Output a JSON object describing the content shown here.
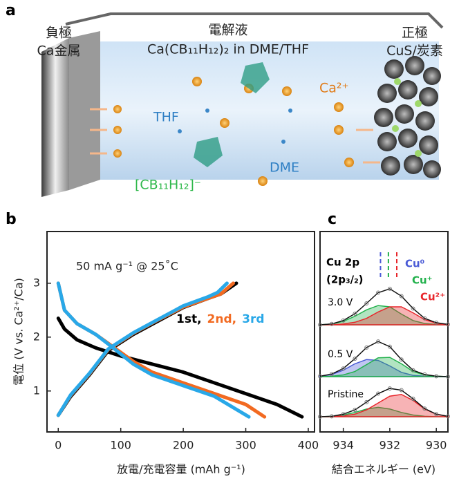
{
  "panels": [
    "a",
    "b",
    "c"
  ],
  "illustration": {
    "anode": {
      "title": "負極",
      "material": "Ca金属"
    },
    "electrolyte": {
      "title": "電解液",
      "composition": "Ca(CB₁₁H₁₂)₂ in DME/THF"
    },
    "cathode": {
      "title": "正極",
      "material": "CuS/炭素"
    },
    "labels": {
      "ion": "Ca²⁺",
      "thf": "THF",
      "dme": "DME",
      "anion": "[CB₁₁H₁₂]⁻"
    }
  },
  "chart_data": [
    {
      "type": "line",
      "y_label": "電位 (V vs. Ca²⁺/Ca)",
      "x_label": "放電/充電容量 (mAh g⁻¹)",
      "annotation": "50 mA g⁻¹  @ 25˚C",
      "xlim": [
        -18,
        410
      ],
      "xticks": [
        0,
        100,
        200,
        300,
        400
      ],
      "ylim": [
        0.24,
        3.96
      ],
      "yticks": [
        1,
        2,
        3
      ],
      "series": [
        {
          "name": "1st,",
          "color": "#000000",
          "discharge": {
            "x": [
              0,
              10,
              30,
              60,
              100,
              150,
              200,
              250,
              300,
              350,
              390
            ],
            "values": [
              2.35,
              2.15,
              1.95,
              1.8,
              1.65,
              1.5,
              1.35,
              1.15,
              0.95,
              0.75,
              0.52
            ]
          },
          "charge": {
            "x": [
              0,
              20,
              50,
              80,
              120,
              160,
              200,
              240,
              260,
              285
            ],
            "values": [
              0.55,
              0.9,
              1.3,
              1.75,
              2.05,
              2.3,
              2.55,
              2.72,
              2.8,
              3.0
            ]
          }
        },
        {
          "name": "2nd,",
          "color": "#f26a21",
          "discharge": {
            "x": [
              0,
              10,
              30,
              60,
              90,
              120,
              150,
              200,
              250,
              300,
              330
            ],
            "values": [
              3.0,
              2.5,
              2.25,
              2.05,
              1.8,
              1.55,
              1.35,
              1.15,
              0.95,
              0.75,
              0.52
            ]
          },
          "charge": {
            "x": [
              0,
              20,
              50,
              80,
              120,
              160,
              200,
              240,
              260,
              280
            ],
            "values": [
              0.55,
              0.92,
              1.32,
              1.77,
              2.07,
              2.32,
              2.56,
              2.72,
              2.8,
              3.0
            ]
          }
        },
        {
          "name": "3rd",
          "color": "#29a8e8",
          "discharge": {
            "x": [
              0,
              10,
              30,
              60,
              90,
              120,
              150,
              200,
              250,
              305
            ],
            "values": [
              3.0,
              2.5,
              2.25,
              2.05,
              1.78,
              1.5,
              1.3,
              1.1,
              0.9,
              0.52
            ]
          },
          "charge": {
            "x": [
              0,
              20,
              50,
              80,
              120,
              160,
              200,
              240,
              255,
              270
            ],
            "values": [
              0.55,
              0.93,
              1.33,
              1.78,
              2.08,
              2.33,
              2.58,
              2.75,
              2.83,
              3.0
            ]
          }
        }
      ]
    },
    {
      "type": "spectra",
      "title": "Cu 2p",
      "subtitle": "(2p₃/₂)",
      "x_label": "結合エネルギー (eV)",
      "xlim": [
        935,
        929.5
      ],
      "xticks": [
        934,
        932,
        930
      ],
      "references": [
        {
          "label": "Cu⁰",
          "value": 932.4,
          "color": "#4a5bd6"
        },
        {
          "label": "Cu⁺",
          "value": 932.06,
          "color": "#22b14c"
        },
        {
          "label": "Cu²⁺",
          "value": 931.7,
          "color": "#e8262b"
        }
      ],
      "x": [
        935,
        934.5,
        934,
        933.5,
        933,
        932.5,
        932,
        931.5,
        931,
        930.5,
        930,
        929.5
      ],
      "spectra": [
        {
          "label": "3.0 V",
          "envelope": [
            0,
            0.02,
            0.1,
            0.26,
            0.5,
            0.75,
            0.84,
            0.67,
            0.38,
            0.15,
            0.05,
            0.01
          ],
          "components": [
            {
              "color": "#22b14c",
              "values": [
                0,
                0.02,
                0.08,
                0.2,
                0.35,
                0.45,
                0.42,
                0.25,
                0.1,
                0.03,
                0.01,
                0
              ]
            },
            {
              "color": "#e8262b",
              "values": [
                0,
                0,
                0.02,
                0.06,
                0.15,
                0.3,
                0.42,
                0.42,
                0.28,
                0.12,
                0.04,
                0.01
              ]
            }
          ]
        },
        {
          "label": "0.5 V",
          "envelope": [
            0.01,
            0.06,
            0.19,
            0.42,
            0.68,
            0.82,
            0.7,
            0.4,
            0.15,
            0.05,
            0.01,
            0
          ],
          "components": [
            {
              "color": "#4a5bd6",
              "values": [
                0.01,
                0.05,
                0.15,
                0.3,
                0.4,
                0.38,
                0.25,
                0.1,
                0.03,
                0.01,
                0,
                0
              ]
            },
            {
              "color": "#22b14c",
              "values": [
                0,
                0.01,
                0.04,
                0.12,
                0.28,
                0.44,
                0.45,
                0.3,
                0.12,
                0.04,
                0.01,
                0
              ]
            }
          ]
        },
        {
          "label": "Pristine",
          "envelope": [
            0,
            0.01,
            0.06,
            0.16,
            0.34,
            0.54,
            0.66,
            0.62,
            0.42,
            0.19,
            0.06,
            0.01
          ],
          "components": [
            {
              "color": "#22b14c",
              "values": [
                0,
                0.01,
                0.04,
                0.1,
                0.18,
                0.22,
                0.18,
                0.1,
                0.04,
                0.01,
                0,
                0
              ]
            },
            {
              "color": "#e8262b",
              "values": [
                0,
                0,
                0.02,
                0.06,
                0.16,
                0.32,
                0.48,
                0.52,
                0.38,
                0.18,
                0.06,
                0.01
              ]
            }
          ]
        }
      ]
    }
  ]
}
